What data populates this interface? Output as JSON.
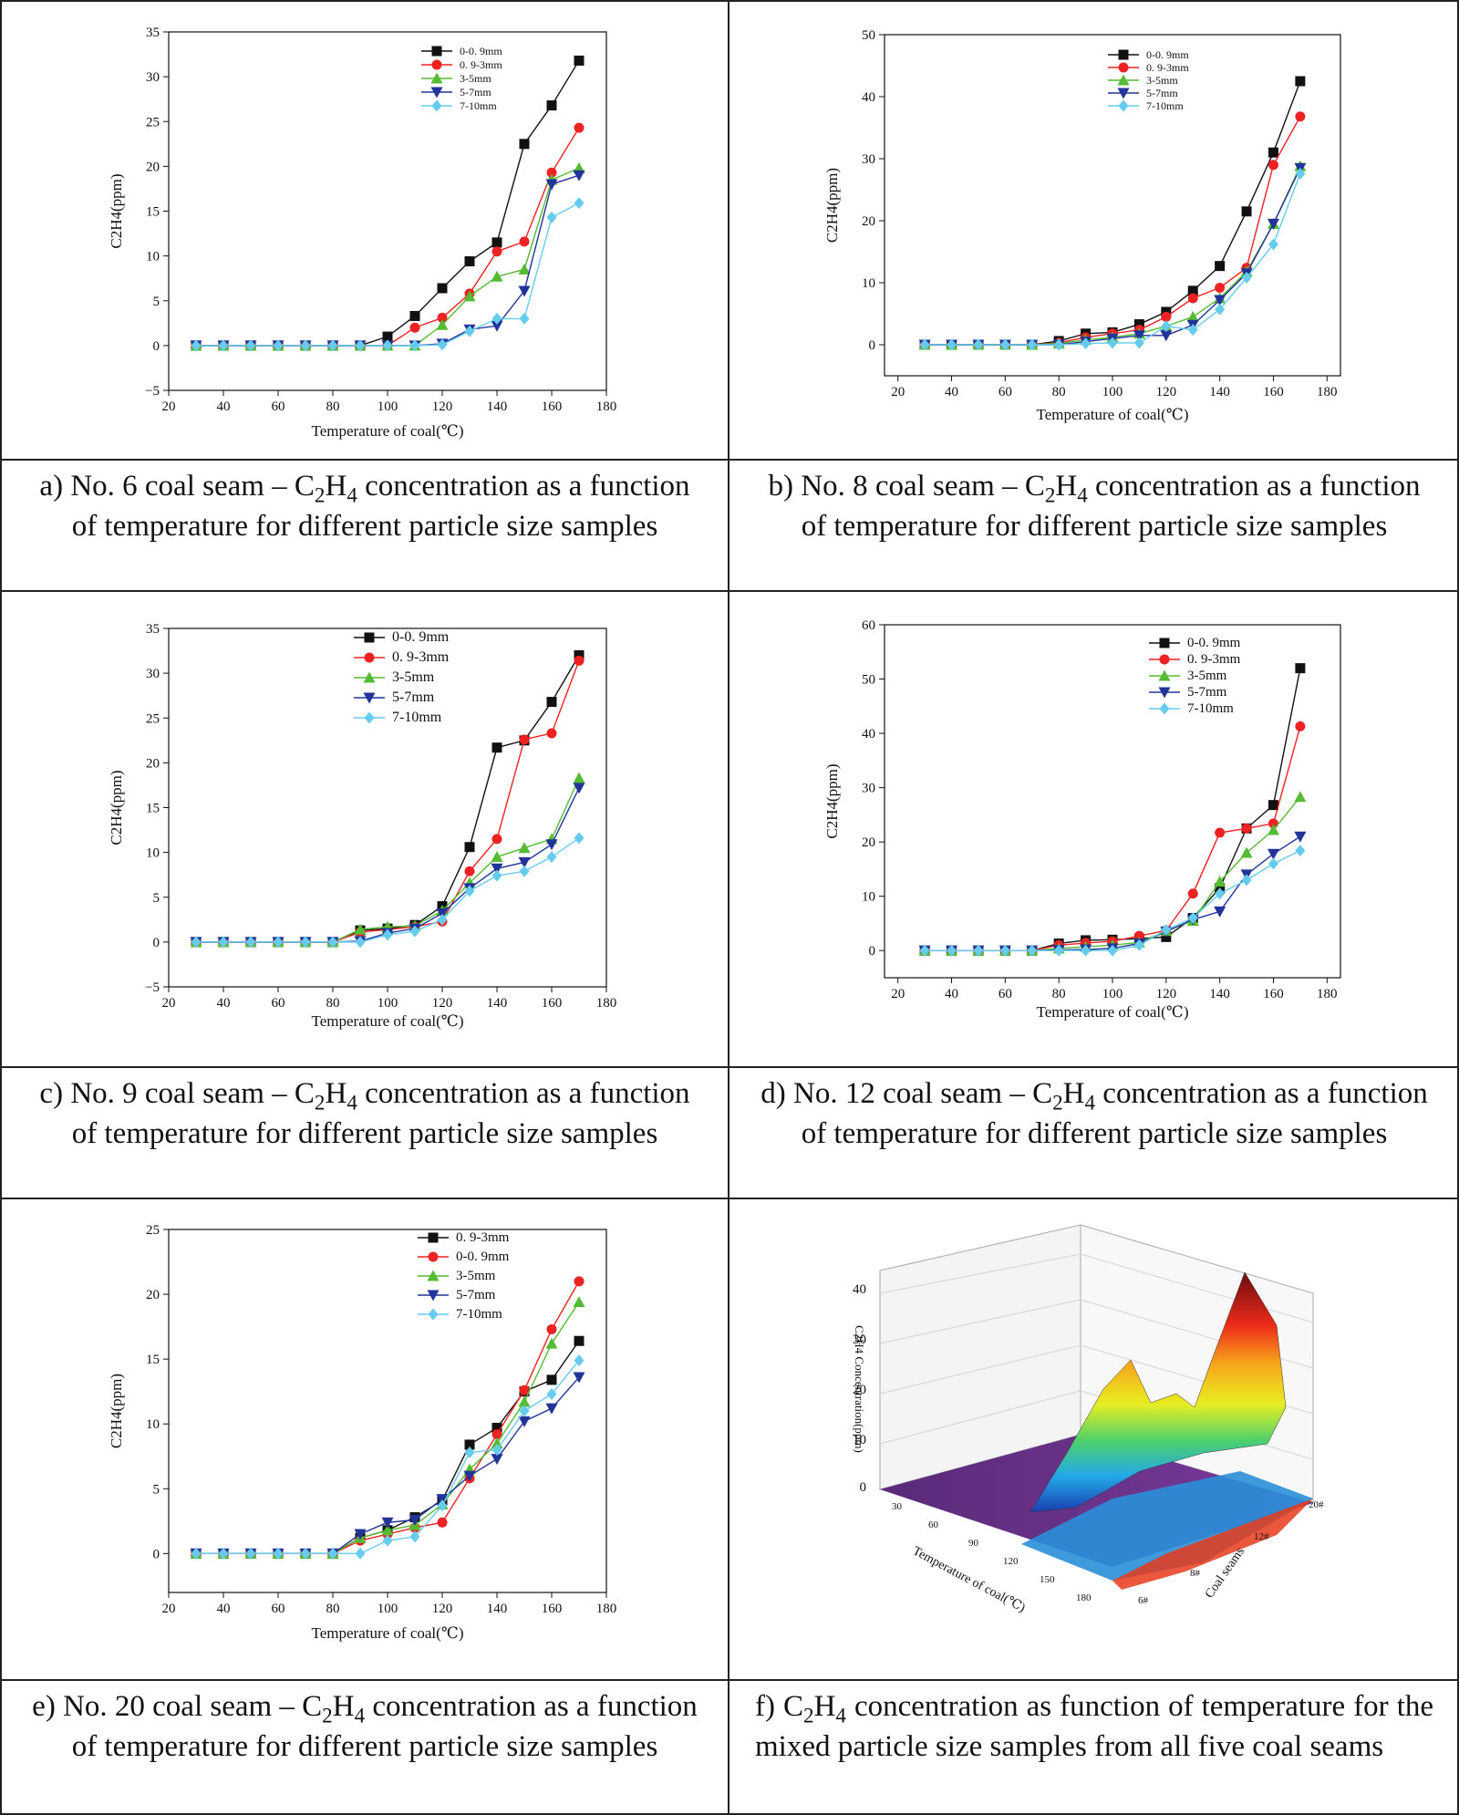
{
  "figure": {
    "captions": [
      {
        "letter": "a)",
        "pre": "No. 6 coal seam – C",
        "s1": "2",
        "mid": "H",
        "s2": "4",
        "post": " concentration as a function of temperature for different particle size samples"
      },
      {
        "letter": "b)",
        "pre": "No. 8 coal seam – C",
        "s1": "2",
        "mid": "H",
        "s2": "4",
        "post": " concentration as a function of temperature for different particle size samples"
      },
      {
        "letter": "c)",
        "pre": "No. 9 coal seam – C",
        "s1": "2",
        "mid": "H",
        "s2": "4",
        "post": " concentration as a function of temperature for different particle size samples"
      },
      {
        "letter": "d)",
        "pre": "No. 12 coal seam – C",
        "s1": "2",
        "mid": "H",
        "s2": "4",
        "post": " concentration as a function of temperature for different particle size samples"
      },
      {
        "letter": "e)",
        "pre": "No. 20 coal seam – C",
        "s1": "2",
        "mid": "H",
        "s2": "4",
        "post": " concentration as a function of temperature for different particle size samples"
      },
      {
        "letter": "f)",
        "pre": "C",
        "s1": "2",
        "mid": "H",
        "s2": "4",
        "post": " concentration as function of temperature for the mixed particle size samples from all five coal seams"
      }
    ],
    "colors": {
      "black": "#111111",
      "red": "#ee2222",
      "green": "#55bb33",
      "blue": "#223399",
      "cyan": "#66ccee"
    }
  },
  "chart_data": [
    {
      "type": "line",
      "panel": "a",
      "xlabel": "Temperature of coal(℃)",
      "ylabel": "C2H4(ppm)",
      "xlim": [
        20,
        180
      ],
      "ylim": [
        -5,
        35
      ],
      "xticks": [
        20,
        40,
        60,
        80,
        100,
        120,
        140,
        160,
        180
      ],
      "yticks": [
        -5,
        0,
        5,
        10,
        15,
        20,
        25,
        30,
        35
      ],
      "x": [
        30,
        40,
        50,
        60,
        70,
        80,
        90,
        100,
        110,
        120,
        130,
        140,
        150,
        160,
        170
      ],
      "legend_position": "top-center",
      "series": [
        {
          "name": "0-0. 9mm",
          "color": "#111111",
          "marker": "square",
          "values": [
            0,
            0,
            0,
            0,
            0,
            0,
            0,
            1.0,
            3.3,
            6.4,
            9.4,
            11.5,
            22.5,
            26.8,
            31.8
          ]
        },
        {
          "name": "0. 9-3mm",
          "color": "#ee2222",
          "marker": "circle",
          "values": [
            0,
            0,
            0,
            0,
            0,
            0,
            0,
            0,
            2.0,
            3.1,
            5.8,
            10.5,
            11.6,
            19.3,
            24.3
          ]
        },
        {
          "name": "3-5mm",
          "color": "#55bb33",
          "marker": "triangle-up",
          "values": [
            0,
            0,
            0,
            0,
            0,
            0,
            0,
            0,
            0,
            2.3,
            5.5,
            7.7,
            8.5,
            18.5,
            19.8
          ]
        },
        {
          "name": "5-7mm",
          "color": "#223399",
          "marker": "triangle-down",
          "values": [
            0,
            0,
            0,
            0,
            0,
            0,
            0,
            0,
            0,
            0.2,
            1.8,
            2.2,
            6.1,
            18.0,
            19.0
          ]
        },
        {
          "name": "7-10mm",
          "color": "#66ccee",
          "marker": "diamond",
          "values": [
            0,
            0,
            0,
            0,
            0,
            0,
            0,
            0,
            0,
            0.1,
            1.6,
            3.0,
            3.0,
            14.3,
            15.9
          ]
        }
      ]
    },
    {
      "type": "line",
      "panel": "b",
      "xlabel": "Temperature of coal(℃)",
      "ylabel": "C2H4(ppm)",
      "xlim": [
        15,
        185
      ],
      "ylim": [
        -5,
        50
      ],
      "xticks": [
        20,
        40,
        60,
        80,
        100,
        120,
        140,
        160,
        180
      ],
      "yticks": [
        0,
        10,
        20,
        30,
        40,
        50
      ],
      "x": [
        30,
        40,
        50,
        60,
        70,
        80,
        90,
        100,
        110,
        120,
        130,
        140,
        150,
        160,
        170
      ],
      "legend_position": "top-center",
      "series": [
        {
          "name": "0-0. 9mm",
          "color": "#111111",
          "marker": "square",
          "values": [
            0,
            0,
            0,
            0,
            0,
            0.6,
            1.8,
            2.0,
            3.3,
            5.3,
            8.7,
            12.7,
            21.5,
            31.0,
            42.5
          ]
        },
        {
          "name": "0. 9-3mm",
          "color": "#ee2222",
          "marker": "circle",
          "values": [
            0,
            0,
            0,
            0,
            0,
            0.3,
            1.2,
            1.8,
            2.4,
            4.5,
            7.5,
            9.2,
            12.4,
            29.0,
            36.8
          ]
        },
        {
          "name": "3-5mm",
          "color": "#55bb33",
          "marker": "triangle-up",
          "values": [
            0,
            0,
            0,
            0,
            0,
            0.2,
            0.8,
            1.2,
            1.8,
            3.0,
            4.5,
            7.5,
            11.8,
            19.5,
            28.8
          ]
        },
        {
          "name": "5-7mm",
          "color": "#223399",
          "marker": "triangle-down",
          "values": [
            0,
            0,
            0,
            0,
            0,
            0,
            0.5,
            1.0,
            1.5,
            1.5,
            3.2,
            7.2,
            11.5,
            19.5,
            28.5
          ]
        },
        {
          "name": "7-10mm",
          "color": "#66ccee",
          "marker": "diamond",
          "values": [
            0,
            0,
            0,
            0,
            0,
            0,
            0.2,
            0.3,
            0.3,
            3.0,
            2.4,
            5.7,
            10.8,
            16.2,
            27.6
          ]
        }
      ]
    },
    {
      "type": "line",
      "panel": "c",
      "xlabel": "Temperature of coal(℃)",
      "ylabel": "C2H4(ppm)",
      "xlim": [
        20,
        180
      ],
      "ylim": [
        -5,
        35
      ],
      "xticks": [
        20,
        40,
        60,
        80,
        100,
        120,
        140,
        160,
        180
      ],
      "yticks": [
        -5,
        0,
        5,
        10,
        15,
        20,
        25,
        30,
        35
      ],
      "x": [
        30,
        40,
        50,
        60,
        70,
        80,
        90,
        100,
        110,
        120,
        130,
        140,
        150,
        160,
        170
      ],
      "legend_position": "top-center",
      "series": [
        {
          "name": "0-0. 9mm",
          "color": "#111111",
          "marker": "square",
          "values": [
            0,
            0,
            0,
            0,
            0,
            0,
            1.3,
            1.5,
            1.9,
            4.0,
            10.6,
            21.7,
            22.5,
            26.8,
            32.0
          ]
        },
        {
          "name": "0. 9-3mm",
          "color": "#ee2222",
          "marker": "circle",
          "values": [
            0,
            0,
            0,
            0,
            0,
            0,
            1.1,
            1.4,
            1.7,
            2.3,
            7.9,
            11.5,
            22.6,
            23.3,
            31.4
          ]
        },
        {
          "name": "3-5mm",
          "color": "#55bb33",
          "marker": "triangle-up",
          "values": [
            0,
            0,
            0,
            0,
            0,
            0,
            1.4,
            1.7,
            1.8,
            3.5,
            6.6,
            9.5,
            10.5,
            11.5,
            18.3
          ]
        },
        {
          "name": "5-7mm",
          "color": "#223399",
          "marker": "triangle-down",
          "values": [
            0,
            0,
            0,
            0,
            0,
            0,
            0.1,
            1.0,
            1.5,
            3.2,
            6.0,
            8.2,
            8.9,
            10.9,
            17.2
          ]
        },
        {
          "name": "7-10mm",
          "color": "#66ccee",
          "marker": "diamond",
          "values": [
            0,
            0,
            0,
            0,
            0,
            0,
            0,
            0.8,
            1.2,
            2.5,
            5.7,
            7.4,
            7.9,
            9.5,
            11.6
          ]
        }
      ]
    },
    {
      "type": "line",
      "panel": "d",
      "xlabel": "Temperature of coal(℃)",
      "ylabel": "C2H4(ppm)",
      "xlim": [
        15,
        185
      ],
      "ylim": [
        -5,
        60
      ],
      "xticks": [
        20,
        40,
        60,
        80,
        100,
        120,
        140,
        160,
        180
      ],
      "yticks": [
        0,
        10,
        20,
        30,
        40,
        50,
        60
      ],
      "x": [
        30,
        40,
        50,
        60,
        70,
        80,
        90,
        100,
        110,
        120,
        130,
        140,
        150,
        160,
        170
      ],
      "legend_position": "top-center",
      "series": [
        {
          "name": "0-0. 9mm",
          "color": "#111111",
          "marker": "square",
          "values": [
            0,
            0,
            0,
            0,
            0,
            1.3,
            1.9,
            2.0,
            2.2,
            2.5,
            6.0,
            11.5,
            22.5,
            26.8,
            52.0
          ]
        },
        {
          "name": "0. 9-3mm",
          "color": "#ee2222",
          "marker": "circle",
          "values": [
            0,
            0,
            0,
            0,
            0,
            1.0,
            1.4,
            1.7,
            2.7,
            3.7,
            10.5,
            21.7,
            22.5,
            23.4,
            41.3
          ]
        },
        {
          "name": "3-5mm",
          "color": "#55bb33",
          "marker": "triangle-up",
          "values": [
            0,
            0,
            0,
            0,
            0,
            0.4,
            0.7,
            1.0,
            1.5,
            3.6,
            5.5,
            12.7,
            18.0,
            22.2,
            28.3
          ]
        },
        {
          "name": "5-7mm",
          "color": "#223399",
          "marker": "triangle-down",
          "values": [
            0,
            0,
            0,
            0,
            0,
            0.1,
            0.2,
            0.4,
            1.3,
            3.5,
            5.7,
            7.2,
            14.0,
            17.8,
            21.0
          ]
        },
        {
          "name": "7-10mm",
          "color": "#66ccee",
          "marker": "diamond",
          "values": [
            0,
            0,
            0,
            0,
            0,
            0,
            0,
            0,
            1.0,
            3.8,
            6.0,
            10.5,
            13.0,
            16.0,
            18.4
          ]
        }
      ]
    },
    {
      "type": "line",
      "panel": "e",
      "xlabel": "Temperature of coal(℃)",
      "ylabel": "C2H4(ppm)",
      "xlim": [
        20,
        180
      ],
      "ylim": [
        -3,
        25
      ],
      "xticks": [
        20,
        40,
        60,
        80,
        100,
        120,
        140,
        160,
        180
      ],
      "yticks": [
        0,
        5,
        10,
        15,
        20,
        25
      ],
      "x": [
        30,
        40,
        50,
        60,
        70,
        80,
        90,
        100,
        110,
        120,
        130,
        140,
        150,
        160,
        170
      ],
      "legend_position": "top-center",
      "series": [
        {
          "name": "0. 9-3mm",
          "color": "#111111",
          "marker": "square",
          "values": [
            0,
            0,
            0,
            0,
            0,
            0,
            1.2,
            1.8,
            2.8,
            4.1,
            8.4,
            9.7,
            12.5,
            13.4,
            16.4
          ]
        },
        {
          "name": "0-0. 9mm",
          "color": "#ee2222",
          "marker": "circle",
          "values": [
            0,
            0,
            0,
            0,
            0,
            0,
            1.0,
            1.5,
            2.0,
            2.4,
            5.8,
            9.2,
            12.6,
            17.3,
            21.0
          ]
        },
        {
          "name": "3-5mm",
          "color": "#55bb33",
          "marker": "triangle-up",
          "values": [
            0,
            0,
            0,
            0,
            0,
            0,
            1.2,
            1.8,
            2.2,
            3.8,
            6.5,
            8.5,
            11.7,
            16.2,
            19.4
          ]
        },
        {
          "name": "5-7mm",
          "color": "#223399",
          "marker": "triangle-down",
          "values": [
            0,
            0,
            0,
            0,
            0,
            0,
            1.5,
            2.4,
            2.6,
            4.2,
            6.0,
            7.3,
            10.2,
            11.2,
            13.6
          ]
        },
        {
          "name": "7-10mm",
          "color": "#66ccee",
          "marker": "diamond",
          "values": [
            0,
            0,
            0,
            0,
            0,
            0,
            0,
            1.0,
            1.3,
            3.7,
            7.8,
            8.0,
            11.0,
            12.3,
            14.9
          ]
        }
      ]
    },
    {
      "type": "surface",
      "panel": "f",
      "xlabel": "Temperature of coal(℃)",
      "ylabel": "Coal seams",
      "zlabel": "C2H4 Concentration(ppm)",
      "xticks": [
        30,
        60,
        90,
        120,
        150,
        180
      ],
      "yticks": [
        "6#",
        "8#",
        "12#",
        "20#"
      ],
      "zticks": [
        0,
        10,
        20,
        30,
        40
      ]
    }
  ]
}
